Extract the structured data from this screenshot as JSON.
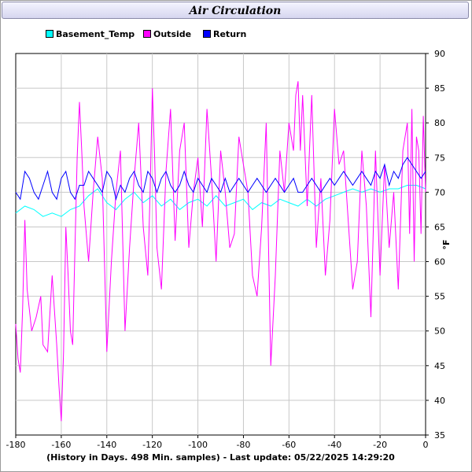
{
  "chart_data": {
    "type": "line",
    "title": "Air Circulation",
    "xlabel": "(History in Days. 498 Min. samples) - Last update: 05/22/2025 14:29:20",
    "ylabel": "°F",
    "xlim": [
      -180,
      0
    ],
    "ylim": [
      35,
      90
    ],
    "x_ticks": [
      -180,
      -160,
      -140,
      -120,
      -100,
      -80,
      -60,
      -40,
      -20,
      0
    ],
    "y_ticks": [
      35,
      40,
      45,
      50,
      55,
      60,
      65,
      70,
      75,
      80,
      85,
      90
    ],
    "y_axis_side": "right",
    "grid": true,
    "legend_position": "top-left",
    "series": [
      {
        "name": "Basement_Temp",
        "color": "#00ffff",
        "x": [
          -180,
          -176,
          -172,
          -168,
          -164,
          -160,
          -156,
          -152,
          -148,
          -144,
          -140,
          -136,
          -132,
          -128,
          -124,
          -120,
          -116,
          -112,
          -108,
          -104,
          -100,
          -96,
          -92,
          -88,
          -84,
          -80,
          -76,
          -72,
          -68,
          -64,
          -60,
          -56,
          -52,
          -48,
          -44,
          -40,
          -36,
          -32,
          -28,
          -24,
          -20,
          -16,
          -12,
          -8,
          -4,
          0
        ],
        "y": [
          67,
          68,
          67.5,
          66.5,
          67,
          66.5,
          67.5,
          68,
          69.5,
          70.5,
          68.5,
          67.5,
          69,
          70,
          68.5,
          69.5,
          68,
          69,
          67.5,
          68.5,
          69,
          68,
          69.5,
          68,
          68.5,
          69,
          67.5,
          68.5,
          68,
          69,
          68.5,
          68,
          69,
          68,
          69,
          69.5,
          70,
          70.5,
          70,
          70.5,
          70,
          70.5,
          70.5,
          71,
          71,
          70.5
        ]
      },
      {
        "name": "Outside",
        "color": "#ff00ff",
        "x": [
          -180,
          -179,
          -178,
          -177,
          -176,
          -175,
          -173,
          -171,
          -169,
          -168,
          -166,
          -164,
          -162,
          -161,
          -160,
          -159,
          -158,
          -157,
          -156,
          -155,
          -154,
          -153,
          -152,
          -151,
          -150,
          -148,
          -146,
          -144,
          -142,
          -140,
          -138,
          -136,
          -134,
          -132,
          -130,
          -128,
          -126,
          -124,
          -122,
          -121,
          -120,
          -119,
          -118,
          -116,
          -114,
          -112,
          -110,
          -108,
          -106,
          -104,
          -102,
          -100,
          -98,
          -96,
          -94,
          -92,
          -90,
          -88,
          -86,
          -84,
          -82,
          -80,
          -78,
          -76,
          -74,
          -72,
          -70,
          -68,
          -66,
          -64,
          -62,
          -60,
          -58,
          -57,
          -56,
          -55,
          -54,
          -52,
          -50,
          -48,
          -46,
          -44,
          -42,
          -40,
          -38,
          -36,
          -34,
          -32,
          -30,
          -28,
          -26,
          -24,
          -22,
          -20,
          -18,
          -16,
          -14,
          -12,
          -10,
          -8,
          -7,
          -6,
          -5,
          -4,
          -3,
          -2,
          -1,
          0
        ],
        "y": [
          51,
          46,
          44,
          53,
          66,
          56,
          50,
          52,
          55,
          48,
          47,
          58,
          48,
          42,
          37,
          47,
          65,
          58,
          50,
          48,
          62,
          75,
          83,
          76,
          68,
          60,
          70,
          78,
          72,
          47,
          60,
          70,
          76,
          50,
          62,
          72,
          80,
          65,
          58,
          70,
          85,
          75,
          62,
          56,
          73,
          82,
          63,
          76,
          80,
          62,
          70,
          75,
          65,
          82,
          72,
          60,
          76,
          70,
          62,
          64,
          78,
          74,
          70,
          58,
          55,
          65,
          80,
          45,
          58,
          76,
          70,
          80,
          76,
          84,
          86,
          76,
          84,
          68,
          84,
          62,
          72,
          58,
          66,
          82,
          74,
          76,
          66,
          56,
          60,
          76,
          68,
          52,
          76,
          58,
          74,
          62,
          70,
          56,
          76,
          80,
          64,
          82,
          60,
          78,
          76,
          64,
          81,
          70
        ]
      },
      {
        "name": "Return",
        "color": "#0000ff",
        "x": [
          -180,
          -178,
          -176,
          -174,
          -172,
          -170,
          -168,
          -166,
          -164,
          -162,
          -160,
          -158,
          -156,
          -154,
          -152,
          -150,
          -148,
          -146,
          -144,
          -142,
          -140,
          -138,
          -136,
          -134,
          -132,
          -130,
          -128,
          -126,
          -124,
          -122,
          -120,
          -118,
          -116,
          -114,
          -112,
          -110,
          -108,
          -106,
          -104,
          -102,
          -100,
          -98,
          -96,
          -94,
          -92,
          -90,
          -88,
          -86,
          -84,
          -82,
          -80,
          -78,
          -76,
          -74,
          -72,
          -70,
          -68,
          -66,
          -64,
          -62,
          -60,
          -58,
          -56,
          -54,
          -52,
          -50,
          -48,
          -46,
          -44,
          -42,
          -40,
          -38,
          -36,
          -34,
          -32,
          -30,
          -28,
          -26,
          -24,
          -22,
          -20,
          -18,
          -16,
          -14,
          -12,
          -10,
          -8,
          -6,
          -4,
          -2,
          0
        ],
        "y": [
          70,
          69,
          73,
          72,
          70,
          69,
          71,
          73,
          70,
          69,
          72,
          73,
          70,
          69,
          71,
          71,
          73,
          72,
          71,
          70,
          73,
          72,
          69,
          71,
          70,
          72,
          73,
          71,
          70,
          73,
          72,
          70,
          72,
          73,
          71,
          70,
          71,
          73,
          71,
          70,
          72,
          71,
          70,
          72,
          71,
          70,
          72,
          70,
          71,
          72,
          71,
          70,
          71,
          72,
          71,
          70,
          71,
          72,
          71,
          70,
          71,
          72,
          70,
          70,
          71,
          72,
          71,
          70,
          71,
          72,
          71,
          72,
          73,
          72,
          71,
          72,
          73,
          72,
          71,
          73,
          72,
          74,
          71,
          73,
          72,
          74,
          75,
          74,
          73,
          72,
          73
        ]
      }
    ]
  }
}
